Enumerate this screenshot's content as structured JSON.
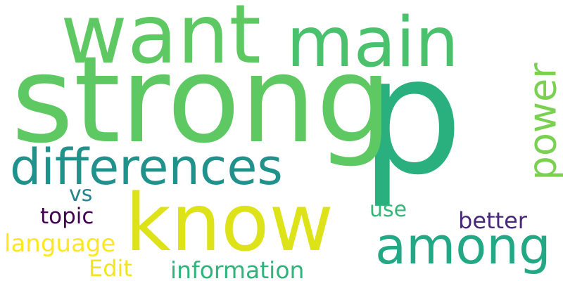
{
  "wordcloud": {
    "background": "#ffffff",
    "words": {
      "p": {
        "text": "p",
        "color": "#2ab07f"
      },
      "strong": {
        "text": "strong",
        "color": "#5ec962"
      },
      "want": {
        "text": "want",
        "color": "#5ec962"
      },
      "main": {
        "text": "main",
        "color": "#4ac16d"
      },
      "know": {
        "text": "know",
        "color": "#dde318"
      },
      "differences": {
        "text": "differences",
        "color": "#21918c"
      },
      "among": {
        "text": "among",
        "color": "#22a884"
      },
      "power": {
        "text": "power",
        "color": "#7ad151"
      },
      "language": {
        "text": "language",
        "color": "#fde725"
      },
      "information": {
        "text": "information",
        "color": "#2fb47c"
      },
      "topic": {
        "text": "topic",
        "color": "#440154"
      },
      "edit": {
        "text": "Edit",
        "color": "#f1e51d"
      },
      "vs": {
        "text": "vs",
        "color": "#26828e"
      },
      "use": {
        "text": "use",
        "color": "#35b779"
      },
      "better": {
        "text": "better",
        "color": "#482878"
      }
    }
  }
}
